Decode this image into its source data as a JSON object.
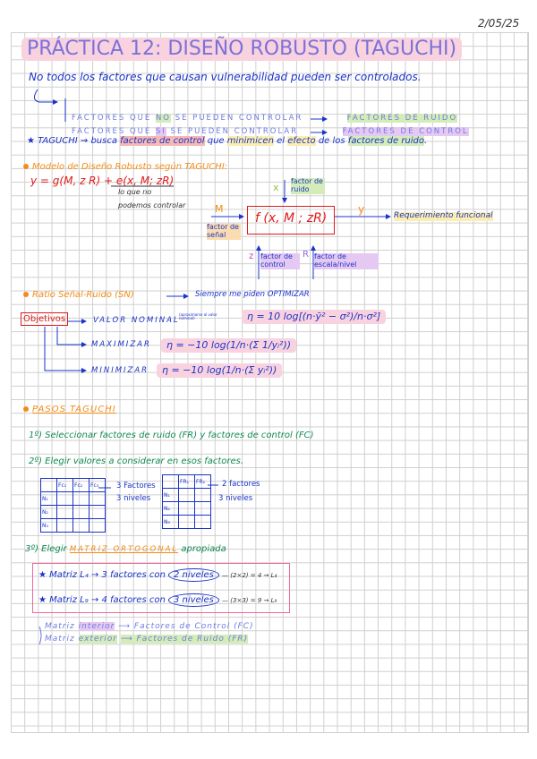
{
  "date": "2/05/25",
  "title": "PRÁCTICA 12: DISEÑO ROBUSTO (TAGUCHI)",
  "intro": "No todos los factores que causan vulnerabilidad pueden ser controlados.",
  "factor_types": [
    {
      "prefix": "FACTORES QUE",
      "keyword": "NO",
      "suffix": "SE PUEDEN CONTROLAR",
      "result": "FACTORES DE RUIDO"
    },
    {
      "prefix": "FACTORES QUE",
      "keyword": "SI",
      "suffix": "SE PUEDEN CONTROLAR",
      "result": "FACTORES DE CONTROL"
    }
  ],
  "taguchi_note": {
    "star": "★",
    "lead": "TAGUCHI ⇝ busca",
    "p1": "factores de control",
    "w1": "que",
    "p2": "minimicen",
    "w2": "el",
    "p3": "efecto",
    "w3": "de los",
    "p4": "factores de ruido",
    "end": "."
  },
  "model": {
    "heading": "Modelo de Diseño Robusto según TAGUCHI:",
    "equation_left": "y = g(M, z R) +",
    "equation_right": "e(x, M; zR)",
    "note_line1": "lo que no",
    "note_line2": "podemos controlar",
    "box_formula": "f (x, M ; zR)",
    "input_x": "x",
    "input_x_label": "factor de ruido",
    "input_m": "M",
    "input_m_label": "factor de señal",
    "input_z": "z",
    "input_z_label": "factor de control",
    "input_r": "R",
    "input_r_label": "factor de escala/nivel",
    "output_y": "y",
    "output_label": "Requerimiento funcional"
  },
  "sn": {
    "heading": "Ratio Señal-Ruido (SN)",
    "arrow_text": "Siempre me piden OPTIMIZAR",
    "objectives_label": "Objetivos",
    "items": [
      {
        "label": "VALOR NOMINAL",
        "note": "(aproximarse al valor nominal)",
        "formula": "η = 10 log[(n·ȳ² − σ²)/n·σ²]"
      },
      {
        "label": "MAXIMIZAR",
        "formula": "η = −10 log(1/n·(Σ 1/yᵢ²))"
      },
      {
        "label": "MINIMIZAR",
        "formula": "η = −10 log(1/n·(Σ yᵢ²))"
      }
    ]
  },
  "steps": {
    "heading": "PASOS TAGUCHI",
    "step1": "1º) Seleccionar factores de ruido (FR) y factores de control (FC)",
    "step2": "2º) Elegir valores a considerar en esos factores.",
    "table_fc": {
      "cols": [
        "Fc₁",
        "Fc₂",
        "Fc₃"
      ],
      "rows": [
        "N₁",
        "N₂",
        "N₃"
      ],
      "note1": "3 Factores",
      "note2": "3 niveles"
    },
    "table_fr": {
      "cols": [
        "FR₁",
        "FR₂"
      ],
      "rows": [
        "N₁",
        "N₂",
        "N₃"
      ],
      "note1": "2 factores",
      "note2": "3 niveles"
    },
    "step3_prefix": "3º) Elegir",
    "step3_key": "MATRIZ ORTOGONAL",
    "step3_suffix": "apropiada",
    "matrices": [
      {
        "text": "★ Matriz L₄ → 3 factores con",
        "circled": "2 niveles",
        "calc": "— (2×2) = 4 → L₄"
      },
      {
        "text": "★ Matriz L₉ → 4 factores con",
        "circled": "3 niveles",
        "calc": "— (3×3) = 9 → L₉"
      }
    ],
    "inner": {
      "a": "Matriz",
      "b": "interior",
      "c": "⟶ Factores de Control (FC)"
    },
    "outer": {
      "a": "Matriz",
      "b": "exterior",
      "c": "⟶ Factores de Ruido (FR)"
    }
  }
}
